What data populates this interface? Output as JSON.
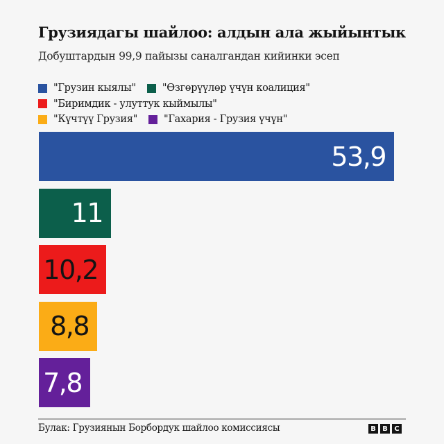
{
  "header": {
    "title": "Грузиядагы шайлоо: алдын ала жыйынтык",
    "subtitle": "Добуштардын 99,9 пайызы саналгандан кийинки эсеп"
  },
  "legend": {
    "rows": [
      [
        {
          "label": "\"Грузин кыялы\"",
          "color": "#2a53a0"
        },
        {
          "label": "\"Өзгөрүүлөр үчүн коалиция\"",
          "color": "#0c5f4b"
        }
      ],
      [
        {
          "label": "\"Биримдик - улуттук кыймылы\"",
          "color": "#ec1b1b"
        }
      ],
      [
        {
          "label": "\"Күчтүү Грузия\"",
          "color": "#fbac16"
        },
        {
          "label": "\"Гахария - Грузия үчүн\"",
          "color": "#64209a"
        }
      ]
    ]
  },
  "chart_data": {
    "type": "bar",
    "orientation": "horizontal",
    "title": "Грузиядагы шайлоо: алдын ала жыйынтык",
    "subtitle": "Добуштардын 99,9 пайызы саналгандан кийинки эсеп",
    "categories": [
      "\"Грузин кыялы\"",
      "\"Өзгөрүүлөр үчүн коалиция\"",
      "\"Биримдик - улуттук кыймылы\"",
      "\"Күчтүү Грузия\"",
      "\"Гахария - Грузия үчүн\""
    ],
    "values": [
      53.9,
      11,
      10.2,
      8.8,
      7.8
    ],
    "value_labels": [
      "53,9",
      "11",
      "10,2",
      "8,8",
      "7,8"
    ],
    "colors": [
      "#2a53a0",
      "#0c5f4b",
      "#ec1b1b",
      "#fbac16",
      "#64209a"
    ],
    "label_colors": [
      "#ffffff",
      "#ffffff",
      "#141414",
      "#141414",
      "#ffffff"
    ],
    "xlabel": "",
    "ylabel": "",
    "xlim": [
      0,
      53.9
    ],
    "grid": false,
    "legend_position": "top"
  },
  "footer": {
    "source": "Булак: Грузиянын Борбордук шайлоо комиссиясы",
    "logo_letters": [
      "B",
      "B",
      "C"
    ]
  }
}
